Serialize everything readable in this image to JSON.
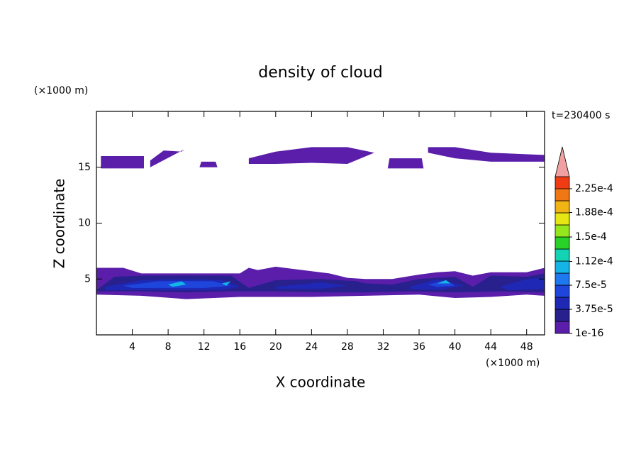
{
  "chart_data": {
    "type": "contour",
    "title": "density of cloud",
    "x_label": "X coordinate",
    "y_label": "Z coordinate",
    "x_unit": "(×1000 m)",
    "y_unit": "(×1000 m)",
    "time_label": "t=230400 s",
    "xlim": [
      0,
      50
    ],
    "ylim": [
      0,
      20
    ],
    "xticks": [
      4,
      8,
      12,
      16,
      20,
      24,
      28,
      32,
      36,
      40,
      44,
      48
    ],
    "yticks": [
      5,
      10,
      15
    ],
    "colorbar": {
      "lim": [
        1e-16,
        0.00024375
      ],
      "ticks": [
        {
          "value": 1e-16,
          "label": "1e-16"
        },
        {
          "value": 3.75e-05,
          "label": "3.75e-5"
        },
        {
          "value": 7.5e-05,
          "label": "7.5e-5"
        },
        {
          "value": 0.000112,
          "label": "1.12e-4"
        },
        {
          "value": 0.00015,
          "label": "1.5e-4"
        },
        {
          "value": 0.000188,
          "label": "1.88e-4"
        },
        {
          "value": 0.000225,
          "label": "2.25e-4"
        }
      ],
      "colors": [
        "#5a1eaa",
        "#28208c",
        "#1e28b4",
        "#1e46dc",
        "#1e78f0",
        "#14b4e6",
        "#14d2b4",
        "#28d228",
        "#96e61e",
        "#e6e614",
        "#f0b414",
        "#f07814",
        "#f03c14"
      ],
      "extend_color": "#f0a0a0"
    },
    "regions": [
      {
        "level": 0,
        "x": [
          0.5,
          5.3,
          5.3,
          0.5
        ],
        "z": [
          14.9,
          14.9,
          16.0,
          16.0
        ]
      },
      {
        "level": 0,
        "x": [
          6,
          9.8,
          9.5,
          7.5,
          6
        ],
        "z": [
          15.0,
          16.6,
          16.4,
          16.5,
          15.6
        ]
      },
      {
        "level": 0,
        "x": [
          11.5,
          13.5,
          13.3,
          11.7
        ],
        "z": [
          15.0,
          15.0,
          15.5,
          15.5
        ]
      },
      {
        "level": 0,
        "x": [
          17,
          20,
          24,
          28,
          31,
          28,
          24,
          20,
          17
        ],
        "z": [
          15.8,
          16.4,
          16.8,
          16.8,
          16.3,
          15.3,
          15.4,
          15.3,
          15.3
        ]
      },
      {
        "level": 0,
        "x": [
          32.5,
          36.5,
          36.3,
          32.7
        ],
        "z": [
          14.9,
          14.9,
          15.8,
          15.8
        ]
      },
      {
        "level": 0,
        "x": [
          37,
          40,
          44,
          50,
          50,
          44,
          40,
          37
        ],
        "z": [
          16.8,
          16.8,
          16.3,
          16.1,
          15.5,
          15.5,
          15.8,
          16.3
        ]
      },
      {
        "level": 0,
        "x": [
          0,
          0,
          3,
          5,
          8,
          10,
          13,
          16,
          17,
          18,
          20,
          22,
          24,
          26,
          28,
          30,
          33,
          36,
          38,
          40,
          42,
          44,
          46,
          48,
          50,
          50,
          48,
          44,
          40,
          36,
          30,
          24,
          16,
          10,
          5,
          0
        ],
        "z": [
          3.6,
          6.0,
          6.0,
          5.5,
          5.5,
          5.5,
          5.5,
          5.5,
          6.0,
          5.8,
          6.1,
          5.9,
          5.7,
          5.5,
          5.1,
          5.0,
          5.0,
          5.4,
          5.6,
          5.7,
          5.3,
          5.6,
          5.6,
          5.6,
          6.0,
          3.5,
          3.6,
          3.4,
          3.3,
          3.6,
          3.5,
          3.4,
          3.4,
          3.2,
          3.5,
          3.6
        ]
      },
      {
        "level": 1,
        "x": [
          0,
          2,
          5,
          10,
          15,
          17,
          20,
          25,
          29,
          30,
          33,
          36,
          40,
          42,
          44,
          48,
          50,
          50,
          45,
          40,
          35,
          30,
          25,
          20,
          15,
          10,
          5,
          0
        ],
        "z": [
          4.0,
          5.2,
          5.3,
          5.3,
          5.3,
          4.2,
          4.9,
          5.0,
          4.8,
          4.6,
          4.5,
          5.0,
          5.2,
          4.3,
          5.3,
          5.2,
          5.5,
          3.8,
          3.9,
          3.8,
          3.9,
          3.8,
          3.8,
          3.9,
          3.9,
          3.8,
          3.9,
          3.9
        ]
      },
      {
        "level": 2,
        "x": [
          1,
          5,
          10,
          14,
          16,
          14,
          10,
          5,
          1
        ],
        "z": [
          4.3,
          4.9,
          5.0,
          4.9,
          4.3,
          4.0,
          4.0,
          4.0,
          4.0
        ]
      },
      {
        "level": 2,
        "x": [
          20,
          25,
          28,
          25,
          20
        ],
        "z": [
          4.3,
          4.7,
          4.4,
          4.1,
          4.1
        ]
      },
      {
        "level": 2,
        "x": [
          35,
          38,
          41,
          38,
          35
        ],
        "z": [
          4.3,
          5.0,
          4.4,
          4.0,
          4.1
        ]
      },
      {
        "level": 2,
        "x": [
          45,
          48,
          50,
          50,
          46
        ],
        "z": [
          4.3,
          5.0,
          5.1,
          4.1,
          4.0
        ]
      },
      {
        "level": 3,
        "x": [
          3,
          7,
          10,
          13,
          15,
          12,
          8,
          4
        ],
        "z": [
          4.4,
          4.8,
          4.8,
          4.8,
          4.4,
          4.2,
          4.2,
          4.2
        ]
      },
      {
        "level": 3,
        "x": [
          37,
          39,
          40,
          38
        ],
        "z": [
          4.5,
          4.9,
          4.4,
          4.3
        ]
      },
      {
        "level": 5,
        "x": [
          8,
          9.5,
          10,
          8.5
        ],
        "z": [
          4.5,
          4.8,
          4.5,
          4.3
        ]
      },
      {
        "level": 5,
        "x": [
          14,
          15,
          14.5
        ],
        "z": [
          4.6,
          4.8,
          4.4
        ]
      },
      {
        "level": 5,
        "x": [
          38,
          39,
          39.5
        ],
        "z": [
          4.6,
          4.9,
          4.6
        ]
      }
    ]
  }
}
